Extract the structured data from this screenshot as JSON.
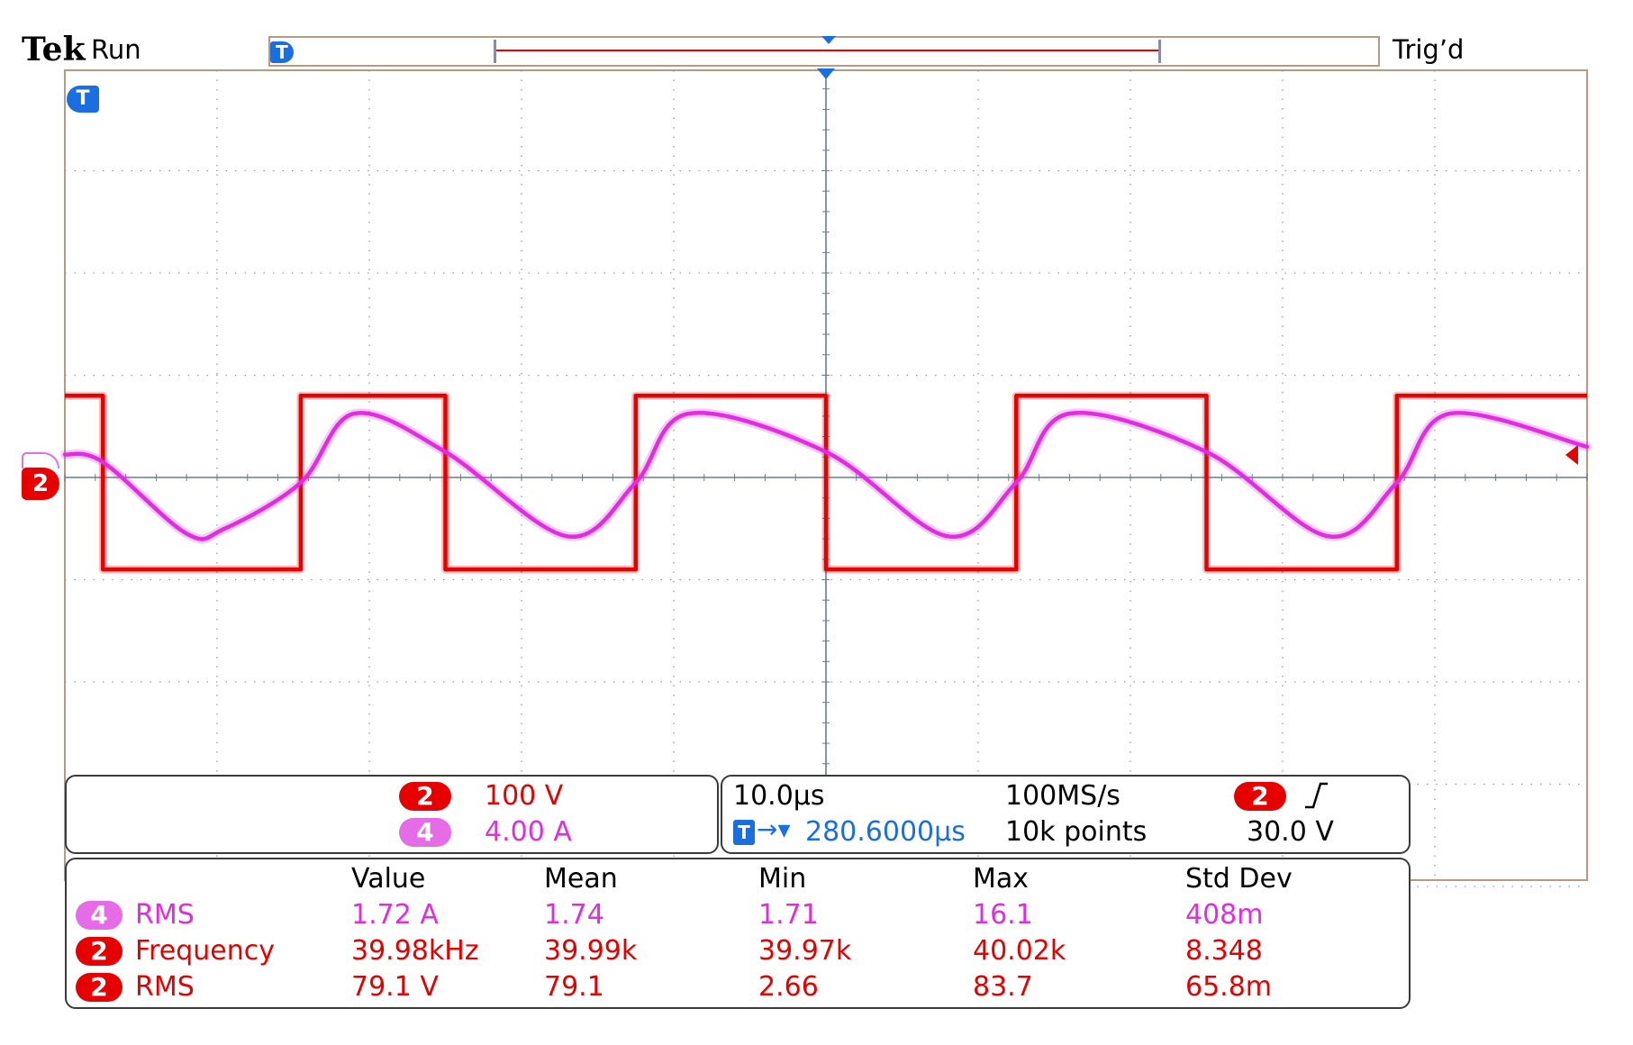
{
  "header": {
    "brand": "Tek",
    "run_state": "Run",
    "trigger_state": "Trig’d",
    "trigger_marker": "T"
  },
  "channels": {
    "ch2": {
      "label": "2",
      "scale": "100 V",
      "color": "#e60000"
    },
    "ch4": {
      "label": "4",
      "scale": "4.00 A",
      "color": "#e22ce2"
    }
  },
  "timebase": {
    "time_per_div": "10.0µs",
    "sample_rate": "100MS/s",
    "trigger_position": "280.6000µs",
    "record_length": "10k points",
    "trigger_source": "2",
    "trigger_level": "30.0 V"
  },
  "measurements": {
    "headers": [
      "Value",
      "Mean",
      "Min",
      "Max",
      "Std Dev"
    ],
    "rows": [
      {
        "channel": "4",
        "name": "RMS",
        "color": "#e22ce2",
        "values": [
          "1.72 A",
          "1.74",
          "1.71",
          "16.1",
          "408m"
        ]
      },
      {
        "channel": "2",
        "name": "Frequency",
        "color": "#e60000",
        "values": [
          "39.98kHz",
          "39.99k",
          "39.97k",
          "40.02k",
          "8.348"
        ]
      },
      {
        "channel": "2",
        "name": "RMS",
        "color": "#e60000",
        "values": [
          "79.1 V",
          "79.1",
          "2.66",
          "83.7",
          "65.8m"
        ]
      }
    ]
  },
  "chart_data": {
    "type": "line",
    "xlabel": "",
    "ylabel": "",
    "grid": true,
    "x_divisions": 10,
    "y_divisions": 8,
    "x_unit": "µs",
    "xlim": [
      -50,
      50
    ],
    "series": [
      {
        "name": "2",
        "color": "#e60000",
        "unit": "V",
        "style": "square",
        "frequency_khz": 39.98,
        "high": 80,
        "low": -90,
        "y_unit_per_div": 100,
        "x": [
          -50,
          -47.5,
          -47.5,
          -34.5,
          -34.5,
          -25,
          -25,
          -12.5,
          -12.5,
          0,
          0,
          12.5,
          12.5,
          25,
          25,
          37.5,
          37.5,
          50
        ],
        "y": [
          80,
          80,
          -90,
          -90,
          80,
          80,
          -90,
          -90,
          80,
          80,
          -90,
          -90,
          80,
          80,
          -90,
          -90,
          80,
          80
        ]
      },
      {
        "name": "4",
        "color": "#e22ce2",
        "unit": "A",
        "style": "smooth",
        "y_unit_per_div": 4.0,
        "x": [
          -50,
          -47.5,
          -42,
          -39.5,
          -34.5,
          -31,
          -25,
          -17,
          -12.5,
          -9,
          0,
          8,
          12.5,
          16,
          25,
          33,
          37.5,
          41,
          50
        ],
        "y": [
          0.9,
          0.6,
          -2.2,
          -2.0,
          -0.2,
          2.5,
          1.0,
          -2.3,
          -0.2,
          2.5,
          1.0,
          -2.3,
          -0.2,
          2.5,
          1.0,
          -2.3,
          -0.2,
          2.5,
          1.2
        ]
      }
    ]
  }
}
